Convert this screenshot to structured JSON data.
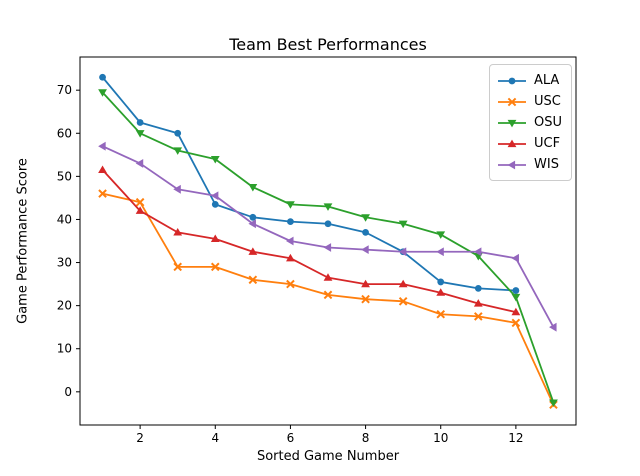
{
  "chart_data": {
    "type": "line",
    "title": "Team Best Performances",
    "xlabel": "Sorted Game Number",
    "ylabel": "Game Performance Score",
    "xlim": [
      0.4,
      13.6
    ],
    "ylim": [
      -7.7,
      77.7
    ],
    "x_ticks": [
      2,
      4,
      6,
      8,
      10,
      12
    ],
    "y_ticks": [
      0,
      10,
      20,
      30,
      40,
      50,
      60,
      70
    ],
    "grid": false,
    "legend_position": "upper right",
    "series": [
      {
        "name": "ALA",
        "color": "#1f77b4",
        "marker": "circle",
        "x": [
          1,
          2,
          3,
          4,
          5,
          6,
          7,
          8,
          9,
          10,
          11,
          12
        ],
        "values": [
          73,
          62.5,
          60,
          43.5,
          40.5,
          39.5,
          39,
          37,
          32.5,
          25.5,
          24,
          23.5
        ]
      },
      {
        "name": "USC",
        "color": "#ff7f0e",
        "marker": "x",
        "x": [
          1,
          2,
          3,
          4,
          5,
          6,
          7,
          8,
          9,
          10,
          11,
          12,
          13
        ],
        "values": [
          46,
          44,
          29,
          29,
          26,
          25,
          22.5,
          21.5,
          21,
          18,
          17.5,
          16,
          -3
        ]
      },
      {
        "name": "OSU",
        "color": "#2ca02c",
        "marker": "triangle-down",
        "x": [
          1,
          2,
          3,
          4,
          5,
          6,
          7,
          8,
          9,
          10,
          11,
          12,
          13
        ],
        "values": [
          69.5,
          60,
          56,
          54,
          47.5,
          43.5,
          43,
          40.5,
          39,
          36.5,
          31.5,
          22,
          -2.5
        ]
      },
      {
        "name": "UCF",
        "color": "#d62728",
        "marker": "triangle-up",
        "x": [
          1,
          2,
          3,
          4,
          5,
          6,
          7,
          8,
          9,
          10,
          11,
          12
        ],
        "values": [
          51.5,
          42,
          37,
          35.5,
          32.5,
          31,
          26.5,
          25,
          25,
          23,
          20.5,
          18.5
        ]
      },
      {
        "name": "WIS",
        "color": "#9467bd",
        "marker": "triangle-left",
        "x": [
          1,
          2,
          3,
          4,
          5,
          6,
          7,
          8,
          9,
          10,
          11,
          12,
          13
        ],
        "values": [
          57,
          53,
          47,
          45.5,
          39,
          35,
          33.5,
          33,
          32.5,
          32.5,
          32.5,
          31,
          15
        ]
      }
    ]
  }
}
